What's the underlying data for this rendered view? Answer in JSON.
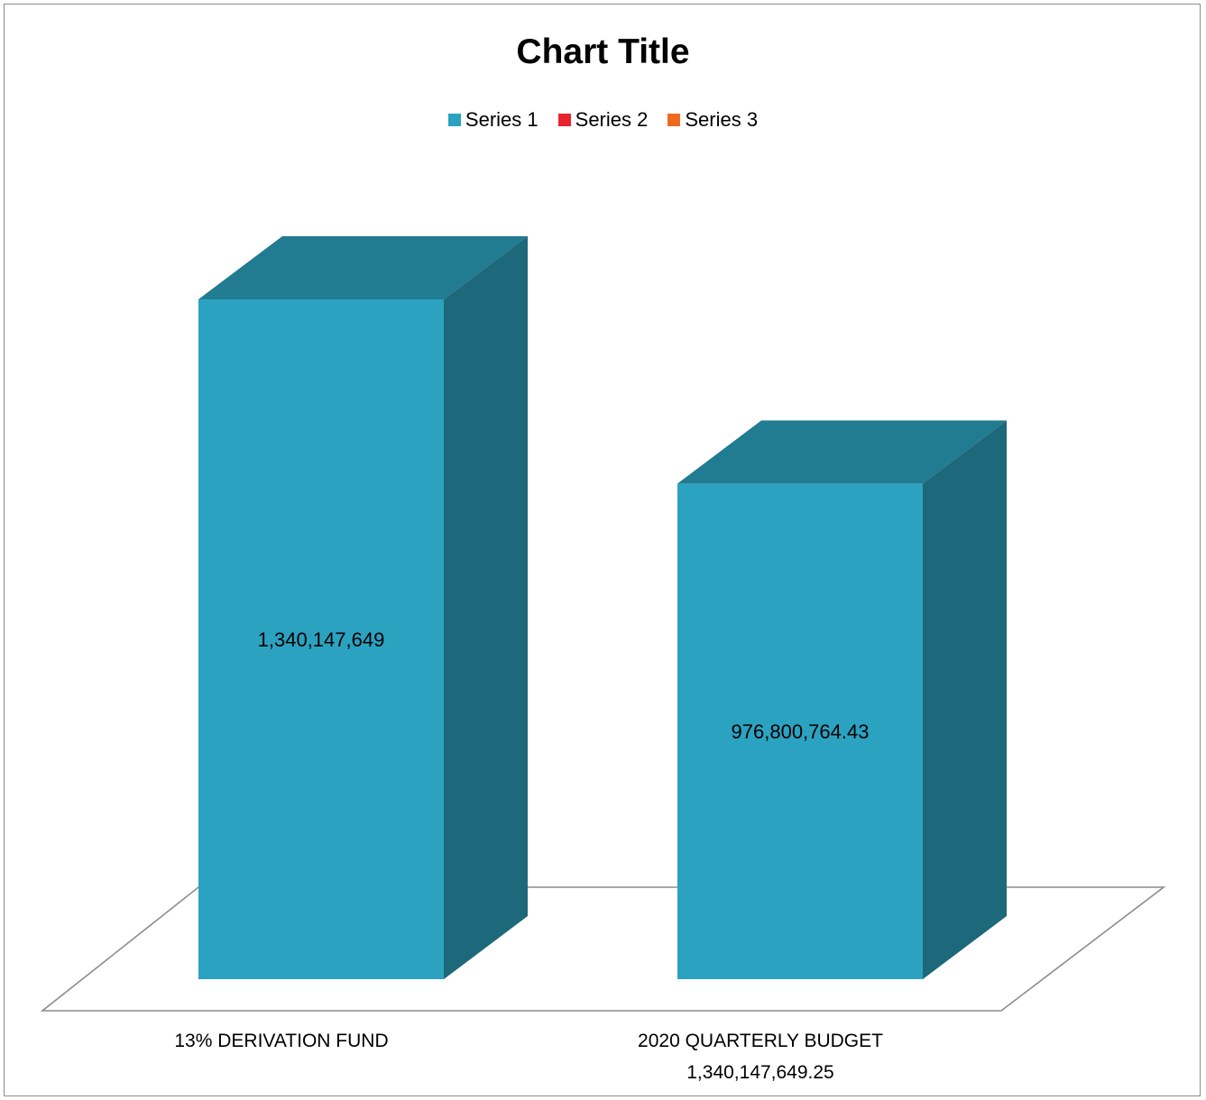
{
  "chart_data": {
    "type": "bar",
    "title": "Chart Title",
    "categories": [
      [
        "13% DERIVATION FUND"
      ],
      [
        "2020 QUARTERLY BUDGET",
        "1,340,147,649.25"
      ]
    ],
    "series": [
      {
        "name": "Series 1",
        "values": [
          1340147649,
          976800764.43
        ],
        "color": "#2CA2C1"
      },
      {
        "name": "Series 2",
        "values": [
          null,
          null
        ],
        "color": "#E8242E"
      },
      {
        "name": "Series 3",
        "values": [
          null,
          null
        ],
        "color": "#EE6A1E"
      }
    ],
    "data_labels": [
      "1,340,147,649",
      "976,800,764.43"
    ],
    "legend_position": "top",
    "grid": false,
    "style": "3d-column",
    "colors": {
      "front": "#2CA2C1",
      "top": "#217B91",
      "side": "#1D687B",
      "floor_line": "#8c8c8c"
    }
  }
}
